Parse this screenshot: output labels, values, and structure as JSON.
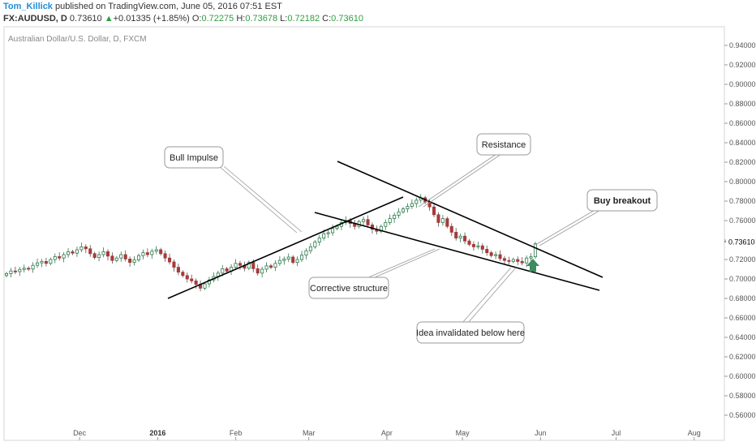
{
  "header": {
    "author": "Tom_Killick",
    "published_text": " published on TradingView.com, June 05, 2016 07:51 EST",
    "symbol": "FX:AUDUSD, D",
    "last": "0.73610",
    "change_arrow": "▲",
    "change": "+0.01335 (+1.85%)",
    "o_label": "O:",
    "o_value": "0.72275",
    "h_label": "H:",
    "h_value": "0.73678",
    "l_label": "L:",
    "l_value": "0.72182",
    "c_label": "C:",
    "c_value": "0.73610"
  },
  "chart_data": {
    "type": "candlestick",
    "legend": "Australian Dollar/U.S. Dollar, D, FXCM",
    "ylim": [
      0.55,
      0.955
    ],
    "y_ticks": [
      "0.94000",
      "0.92000",
      "0.90000",
      "0.88000",
      "0.86000",
      "0.84000",
      "0.82000",
      "0.80000",
      "0.78000",
      "0.76000",
      "0.74000",
      "0.72000",
      "0.70000",
      "0.68000",
      "0.66000",
      "0.64000",
      "0.62000",
      "0.60000",
      "0.58000",
      "0.56000"
    ],
    "current_price_label": "0.73610",
    "x_ticks": [
      {
        "label": "Dec",
        "day": 30,
        "bold": false
      },
      {
        "label": "2016",
        "day": 61,
        "bold": true
      },
      {
        "label": "Feb",
        "day": 92,
        "bold": false
      },
      {
        "label": "Mar",
        "day": 121,
        "bold": false
      },
      {
        "label": "Apr",
        "day": 152,
        "bold": false
      },
      {
        "label": "May",
        "day": 182,
        "bold": false
      },
      {
        "label": "Jun",
        "day": 213,
        "bold": false
      },
      {
        "label": "Jul",
        "day": 243,
        "bold": false
      },
      {
        "label": "Aug",
        "day": 274,
        "bold": false
      }
    ],
    "x_range_days": [
      0,
      286
    ],
    "closes": [
      0.7055,
      0.7082,
      0.7075,
      0.7098,
      0.711,
      0.7102,
      0.714,
      0.7165,
      0.718,
      0.716,
      0.72,
      0.723,
      0.7215,
      0.725,
      0.728,
      0.7265,
      0.73,
      0.733,
      0.731,
      0.726,
      0.722,
      0.725,
      0.728,
      0.7235,
      0.719,
      0.7215,
      0.725,
      0.7205,
      0.717,
      0.7195,
      0.724,
      0.727,
      0.725,
      0.7285,
      0.73,
      0.726,
      0.7215,
      0.7175,
      0.712,
      0.707,
      0.7035,
      0.7,
      0.698,
      0.6945,
      0.6905,
      0.695,
      0.699,
      0.7025,
      0.706,
      0.7105,
      0.708,
      0.712,
      0.716,
      0.714,
      0.711,
      0.717,
      0.7105,
      0.706,
      0.71,
      0.7135,
      0.712,
      0.716,
      0.719,
      0.7205,
      0.7225,
      0.717,
      0.72,
      0.7245,
      0.729,
      0.733,
      0.738,
      0.742,
      0.7465,
      0.7475,
      0.752,
      0.754,
      0.758,
      0.76,
      0.757,
      0.754,
      0.759,
      0.761,
      0.7555,
      0.751,
      0.749,
      0.754,
      0.758,
      0.762,
      0.7655,
      0.769,
      0.772,
      0.7745,
      0.7775,
      0.781,
      0.7835,
      0.779,
      0.774,
      0.766,
      0.758,
      0.762,
      0.754,
      0.748,
      0.742,
      0.744,
      0.739,
      0.7355,
      0.733,
      0.734,
      0.7305,
      0.727,
      0.724,
      0.725,
      0.721,
      0.719,
      0.718,
      0.72,
      0.718,
      0.7165,
      0.7215,
      0.7228,
      0.7361
    ],
    "annotations": [
      {
        "text": "Bull Impulse",
        "bold": false
      },
      {
        "text": "Resistance",
        "bold": false
      },
      {
        "text": "Buy breakout",
        "bold": true
      },
      {
        "text": "Corrective structure",
        "bold": false
      },
      {
        "text": "Idea invalidated below here",
        "bold": false
      }
    ],
    "colors": {
      "up": "#ffffff",
      "down": "#a83a3a",
      "up_border": "#2f7a4d",
      "arrow": "#3d8b5f",
      "line": "#000000"
    }
  }
}
